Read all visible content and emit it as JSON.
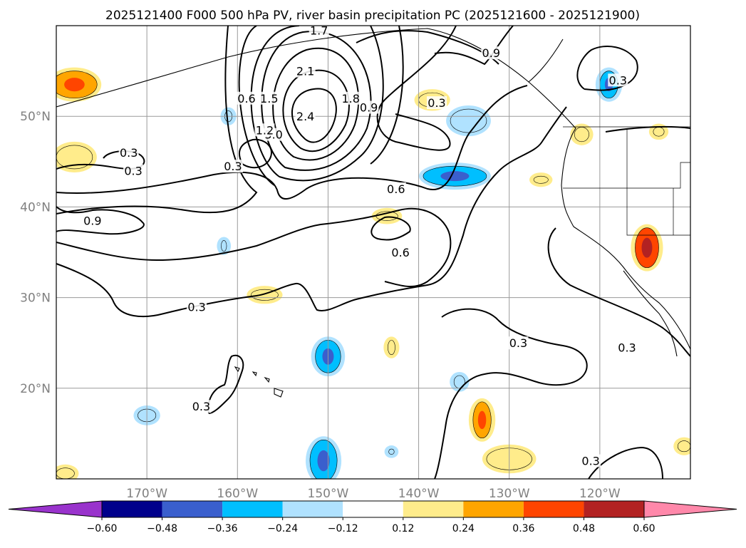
{
  "chart_data": {
    "type": "contour",
    "title": "2025121400 F000 500 hPa PV, river basin precipitation PC (2025121600 - 2025121900)",
    "map": {
      "lon_range": [
        -180,
        -110
      ],
      "lat_range": [
        10,
        60
      ],
      "lon_ticks": [
        -170,
        -160,
        -150,
        -140,
        -130,
        -120
      ],
      "lon_tick_labels": [
        "170°W",
        "160°W",
        "150°W",
        "140°W",
        "130°W",
        "120°W"
      ],
      "lat_ticks": [
        20,
        30,
        40,
        50
      ],
      "lat_tick_labels": [
        "20°N",
        "30°N",
        "40°N",
        "50°N"
      ],
      "grid": true
    },
    "contour_labels": [
      {
        "text": "3.0",
        "lon": -156,
        "lat": 48
      },
      {
        "text": "2.4",
        "lon": -152.5,
        "lat": 50
      },
      {
        "text": "2.1",
        "lon": -152.5,
        "lat": 55
      },
      {
        "text": "1.8",
        "lon": -147.5,
        "lat": 52
      },
      {
        "text": "1.5",
        "lon": -156.5,
        "lat": 52
      },
      {
        "text": "1.2",
        "lon": -157,
        "lat": 48.5
      },
      {
        "text": "1.7",
        "lon": -151,
        "lat": 59.5
      },
      {
        "text": "0.9",
        "lon": -145.5,
        "lat": 51
      },
      {
        "text": "0.9",
        "lon": -132,
        "lat": 57
      },
      {
        "text": "0.9",
        "lon": -176,
        "lat": 38.5
      },
      {
        "text": "0.6",
        "lon": -159,
        "lat": 52
      },
      {
        "text": "0.6",
        "lon": -142.5,
        "lat": 42
      },
      {
        "text": "0.6",
        "lon": -142,
        "lat": 35
      },
      {
        "text": "0.3",
        "lon": -160.5,
        "lat": 44.5
      },
      {
        "text": "0.3",
        "lon": -171.5,
        "lat": 44
      },
      {
        "text": "0.3",
        "lon": -138,
        "lat": 51.5
      },
      {
        "text": "0.3",
        "lon": -118,
        "lat": 54
      },
      {
        "text": "0.3",
        "lon": -164.5,
        "lat": 29
      },
      {
        "text": "0.3",
        "lon": -129,
        "lat": 25
      },
      {
        "text": "0.3",
        "lon": -117,
        "lat": 24.5
      },
      {
        "text": "0.3",
        "lon": -164,
        "lat": 18
      },
      {
        "text": "0.3",
        "lon": -121,
        "lat": 12
      },
      {
        "text": "0.3",
        "lon": -172,
        "lat": 46
      }
    ],
    "colorbar": {
      "levels": [
        -0.6,
        -0.48,
        -0.36,
        -0.24,
        -0.12,
        0.12,
        0.24,
        0.36,
        0.48,
        0.6
      ],
      "tick_labels": [
        "−0.60",
        "−0.48",
        "−0.36",
        "−0.24",
        "−0.12",
        "0.12",
        "0.24",
        "0.36",
        "0.48",
        "0.60"
      ],
      "colors": [
        "#9933cc",
        "#00008b",
        "#3a5fcd",
        "#00bfff",
        "#b0e2ff",
        "#ffffff",
        "#ffec8b",
        "#ffa500",
        "#ff4500",
        "#b22222",
        "#ff88aa"
      ],
      "extend": "both"
    },
    "filled_regions": [
      {
        "lon": -178,
        "lat": 53.5,
        "rx": 2.5,
        "ry": 1.5,
        "value": 0.45
      },
      {
        "lon": -178,
        "lat": 45.5,
        "rx": 2,
        "ry": 1.3,
        "value": 0.3
      },
      {
        "lon": -138.5,
        "lat": 51.8,
        "rx": 1.5,
        "ry": 0.8,
        "value": 0.25
      },
      {
        "lon": -134.5,
        "lat": 49.5,
        "rx": 2,
        "ry": 1.3,
        "value": -0.3
      },
      {
        "lon": -119,
        "lat": 53.5,
        "rx": 1,
        "ry": 1.5,
        "value": -0.45
      },
      {
        "lon": -122,
        "lat": 48,
        "rx": 0.8,
        "ry": 0.8,
        "value": 0.3
      },
      {
        "lon": -113.5,
        "lat": 48.3,
        "rx": 0.6,
        "ry": 0.5,
        "value": 0.3
      },
      {
        "lon": -136,
        "lat": 43.4,
        "rx": 3.5,
        "ry": 1.1,
        "value": -0.4
      },
      {
        "lon": -126.5,
        "lat": 43,
        "rx": 0.8,
        "ry": 0.4,
        "value": 0.2
      },
      {
        "lon": -114.8,
        "lat": 35.5,
        "rx": 1.3,
        "ry": 2.2,
        "value": 0.5
      },
      {
        "lon": -143.5,
        "lat": 39,
        "rx": 1.2,
        "ry": 0.5,
        "value": 0.3
      },
      {
        "lon": -161,
        "lat": 50,
        "rx": 0.4,
        "ry": 0.6,
        "value": -0.3
      },
      {
        "lon": -161.5,
        "lat": 35.7,
        "rx": 0.3,
        "ry": 0.6,
        "value": -0.3
      },
      {
        "lon": -157,
        "lat": 30.3,
        "rx": 1.5,
        "ry": 0.6,
        "value": 0.3
      },
      {
        "lon": -150,
        "lat": 23.5,
        "rx": 1.4,
        "ry": 1.8,
        "value": -0.4
      },
      {
        "lon": -143,
        "lat": 24.5,
        "rx": 0.4,
        "ry": 0.8,
        "value": 0.3
      },
      {
        "lon": -135.5,
        "lat": 20.7,
        "rx": 0.6,
        "ry": 0.7,
        "value": -0.3
      },
      {
        "lon": -133,
        "lat": 16.5,
        "rx": 1,
        "ry": 2,
        "value": 0.45
      },
      {
        "lon": -130,
        "lat": 12.2,
        "rx": 2.5,
        "ry": 1.2,
        "value": 0.3
      },
      {
        "lon": -150.5,
        "lat": 12,
        "rx": 1.5,
        "ry": 2.3,
        "value": -0.45
      },
      {
        "lon": -170,
        "lat": 17,
        "rx": 1,
        "ry": 0.7,
        "value": -0.3
      },
      {
        "lon": -179,
        "lat": 10.6,
        "rx": 1,
        "ry": 0.6,
        "value": 0.3
      },
      {
        "lon": -110.7,
        "lat": 13.6,
        "rx": 0.7,
        "ry": 0.6,
        "value": 0.3
      },
      {
        "lon": -143,
        "lat": 13,
        "rx": 0.3,
        "ry": 0.3,
        "value": -0.2
      }
    ]
  }
}
